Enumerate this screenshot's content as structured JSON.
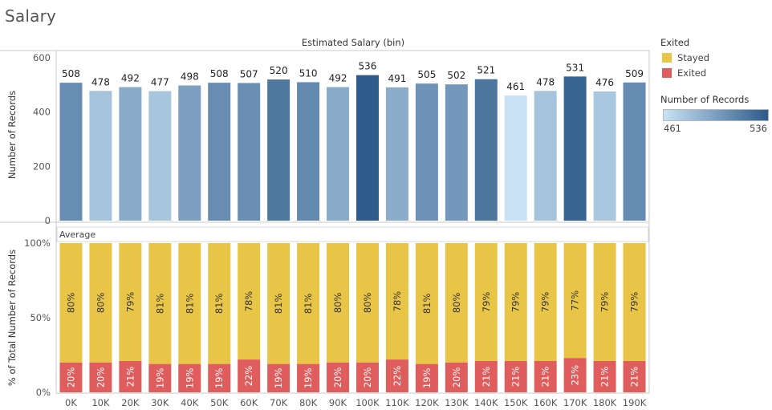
{
  "sheet": {
    "title": "Salary"
  },
  "legend": {
    "title": "Exited",
    "items": [
      {
        "label": "Stayed",
        "color": "#e8c547"
      },
      {
        "label": "Exited",
        "color": "#e05d5d"
      }
    ],
    "gradient": {
      "title": "Number of Records",
      "min_label": "461",
      "max_label": "536",
      "min_color": "#c9e2f5",
      "max_color": "#2e5b8a"
    }
  },
  "chart_data": [
    {
      "type": "bar",
      "title": "Estimated Salary (bin)",
      "xlabel": "",
      "ylabel": "Number of Records",
      "ylim": [
        0,
        600
      ],
      "yticks": [
        "0",
        "200",
        "400",
        "600"
      ],
      "categories": [
        "0K",
        "10K",
        "20K",
        "30K",
        "40K",
        "50K",
        "60K",
        "70K",
        "80K",
        "90K",
        "100K",
        "110K",
        "120K",
        "130K",
        "140K",
        "150K",
        "160K",
        "170K",
        "180K",
        "190K"
      ],
      "values": [
        508,
        478,
        492,
        477,
        498,
        508,
        507,
        520,
        510,
        492,
        536,
        491,
        505,
        502,
        521,
        461,
        478,
        531,
        476,
        509
      ],
      "color_scale": {
        "min": 461,
        "max": 536,
        "min_color": "#c9e2f5",
        "max_color": "#2e5b8a"
      }
    },
    {
      "type": "bar",
      "stacked": true,
      "percent": true,
      "ylabel": "% of Total Number of Records",
      "yticks": [
        "0%",
        "50%",
        "100%"
      ],
      "reference_line_label": "Average",
      "categories": [
        "0K",
        "10K",
        "20K",
        "30K",
        "40K",
        "50K",
        "60K",
        "70K",
        "80K",
        "90K",
        "100K",
        "110K",
        "120K",
        "130K",
        "140K",
        "150K",
        "160K",
        "170K",
        "180K",
        "190K"
      ],
      "series": [
        {
          "name": "Exited",
          "color": "#e05d5d",
          "values": [
            20,
            20,
            21,
            19,
            19,
            19,
            22,
            19,
            19,
            20,
            20,
            22,
            19,
            20,
            21,
            21,
            21,
            23,
            21,
            21
          ]
        },
        {
          "name": "Stayed",
          "color": "#e8c547",
          "values": [
            80,
            80,
            79,
            81,
            81,
            81,
            78,
            81,
            81,
            80,
            80,
            78,
            81,
            80,
            79,
            79,
            79,
            77,
            79,
            79
          ]
        }
      ]
    }
  ]
}
